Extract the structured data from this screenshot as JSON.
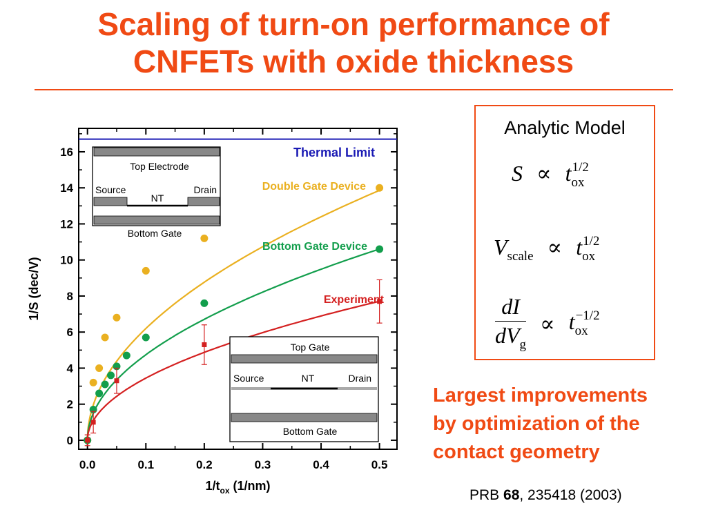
{
  "slide": {
    "title_line1": "Scaling of turn-on performance of",
    "title_line2": "CNFETs with oxide thickness",
    "accent_color": "#f04a14"
  },
  "model": {
    "title": "Analytic Model",
    "eq1": {
      "lhs": "S",
      "op": "∝",
      "base": "t",
      "sub": "ox",
      "sup": "1/2"
    },
    "eq2": {
      "lhs": "V",
      "lhs_sub": "scale",
      "op": "∝",
      "base": "t",
      "sub": "ox",
      "sup": "1/2"
    },
    "eq3": {
      "num": "dI",
      "den_base": "dV",
      "den_sub": "g",
      "op": "∝",
      "base": "t",
      "sub": "ox",
      "sup": "−1/2"
    }
  },
  "conclusion": {
    "line1": "Largest improvements",
    "line2": "by optimization of the",
    "line3": "contact geometry"
  },
  "citation": {
    "journal": "PRB ",
    "volume": "68",
    "rest": ", 235418 (2003)"
  },
  "chart_data": {
    "type": "scatter",
    "xlabel": "1/t",
    "xlabel_sub": "ox",
    "xlabel_unit": " (1/nm)",
    "ylabel": "1/S (dec/V)",
    "xlim": [
      -0.015,
      0.53
    ],
    "ylim": [
      -0.5,
      17.3
    ],
    "x_ticks": [
      0.0,
      0.1,
      0.2,
      0.3,
      0.4,
      0.5
    ],
    "x_tick_labels": [
      "0.0",
      "0.1",
      "0.2",
      "0.3",
      "0.4",
      "0.5"
    ],
    "y_ticks": [
      0,
      2,
      4,
      6,
      8,
      10,
      12,
      14,
      16
    ],
    "y_tick_labels": [
      "0",
      "2",
      "4",
      "6",
      "8",
      "10",
      "12",
      "14",
      "16"
    ],
    "thermal_limit": {
      "label": "Thermal Limit",
      "value": 16.7,
      "color": "#1a1ab4"
    },
    "series": [
      {
        "name": "Double Gate Device",
        "color": "#eab020",
        "kind": "points+fit",
        "x": [
          0.0,
          0.01,
          0.02,
          0.03,
          0.05,
          0.1,
          0.2,
          0.5
        ],
        "y": [
          0.0,
          3.2,
          4.0,
          5.7,
          6.8,
          9.4,
          11.2,
          14.0
        ],
        "fit_sqrt_coeff": 19.6
      },
      {
        "name": "Bottom Gate Device",
        "color": "#129e4c",
        "kind": "points+fit",
        "x": [
          0.0,
          0.01,
          0.02,
          0.03,
          0.04,
          0.05,
          0.067,
          0.1,
          0.2,
          0.5
        ],
        "y": [
          0.0,
          1.7,
          2.6,
          3.1,
          3.6,
          4.1,
          4.7,
          5.7,
          7.6,
          10.6
        ],
        "fit_sqrt_coeff": 15.0
      },
      {
        "name": "Experiment",
        "color": "#d42020",
        "kind": "errorbars+fit",
        "x": [
          0.0,
          0.01,
          0.05,
          0.2,
          0.5
        ],
        "y": [
          0.0,
          1.0,
          3.3,
          5.3,
          7.7
        ],
        "err": [
          0.3,
          0.6,
          0.7,
          1.1,
          1.2
        ],
        "fit_sqrt_coeff": 10.9
      }
    ],
    "inset_top": {
      "top_label": "Top Electrode",
      "source": "Source",
      "nt": "NT",
      "drain": "Drain",
      "bottom_label": "Bottom Gate"
    },
    "inset_bottom": {
      "top_label": "Top Gate",
      "source": "Source",
      "nt": "NT",
      "drain": "Drain",
      "bottom_label": "Bottom Gate"
    }
  }
}
